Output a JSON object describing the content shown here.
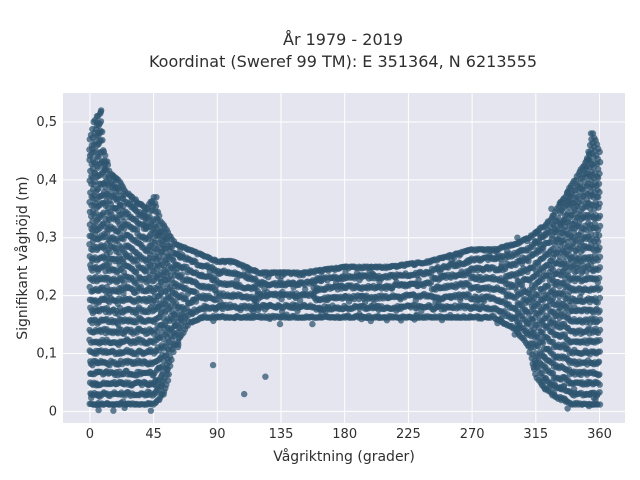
{
  "chart_data": {
    "type": "scatter",
    "title": "År 1979 - 2019",
    "subtitle": "Koordinat (Sweref 99 TM): E 351364, N 6213555",
    "xlabel": "Vågriktning (grader)",
    "ylabel": "Signifikant våghöjd (m)",
    "xlim": [
      -19,
      378
    ],
    "ylim": [
      -0.02,
      0.55
    ],
    "xticks": [
      0,
      45,
      90,
      135,
      180,
      225,
      270,
      315,
      360
    ],
    "xtick_labels": [
      "0",
      "45",
      "90",
      "135",
      "180",
      "225",
      "270",
      "315",
      "360"
    ],
    "yticks": [
      0,
      0.1,
      0.2,
      0.3,
      0.4,
      0.5
    ],
    "ytick_labels": [
      "0",
      "0,1",
      "0,2",
      "0,3",
      "0,4",
      "0,5"
    ],
    "grid": true,
    "legend": "none",
    "marker_color": "#2f5570",
    "plot_background": "#e5e5ef",
    "envelope": {
      "description": "dense point cloud; per-direction min and max of observed wave height",
      "x": [
        0,
        3,
        5,
        8,
        10,
        15,
        20,
        25,
        30,
        35,
        40,
        45,
        50,
        55,
        60,
        70,
        80,
        90,
        100,
        110,
        120,
        135,
        150,
        180,
        210,
        240,
        270,
        285,
        300,
        310,
        315,
        320,
        325,
        330,
        335,
        340,
        345,
        350,
        355,
        360
      ],
      "y_max": [
        0.47,
        0.5,
        0.51,
        0.52,
        0.45,
        0.41,
        0.4,
        0.38,
        0.37,
        0.36,
        0.35,
        0.37,
        0.33,
        0.31,
        0.29,
        0.28,
        0.27,
        0.26,
        0.26,
        0.25,
        0.24,
        0.24,
        0.24,
        0.25,
        0.25,
        0.26,
        0.28,
        0.28,
        0.29,
        0.3,
        0.31,
        0.32,
        0.33,
        0.35,
        0.37,
        0.39,
        0.41,
        0.43,
        0.48,
        0.45
      ],
      "y_min": [
        0.0,
        0.0,
        0.0,
        0.0,
        0.0,
        0.0,
        0.0,
        0.0,
        0.0,
        0.0,
        0.0,
        0.0,
        0.01,
        0.04,
        0.1,
        0.14,
        0.15,
        0.15,
        0.15,
        0.15,
        0.15,
        0.15,
        0.15,
        0.15,
        0.15,
        0.15,
        0.15,
        0.15,
        0.13,
        0.1,
        0.05,
        0.03,
        0.02,
        0.01,
        0.01,
        0.0,
        0.0,
        0.0,
        0.0,
        0.0
      ]
    },
    "highlighted_points": [
      {
        "x": 8,
        "y": 0.52
      },
      {
        "x": 47,
        "y": 0.37
      },
      {
        "x": 87,
        "y": 0.08
      },
      {
        "x": 109,
        "y": 0.03
      },
      {
        "x": 124,
        "y": 0.06
      },
      {
        "x": 354,
        "y": 0.48
      },
      {
        "x": 302,
        "y": 0.3
      },
      {
        "x": 317,
        "y": 0.28
      },
      {
        "x": 326,
        "y": 0.35
      },
      {
        "x": 332,
        "y": 0.36
      }
    ]
  }
}
